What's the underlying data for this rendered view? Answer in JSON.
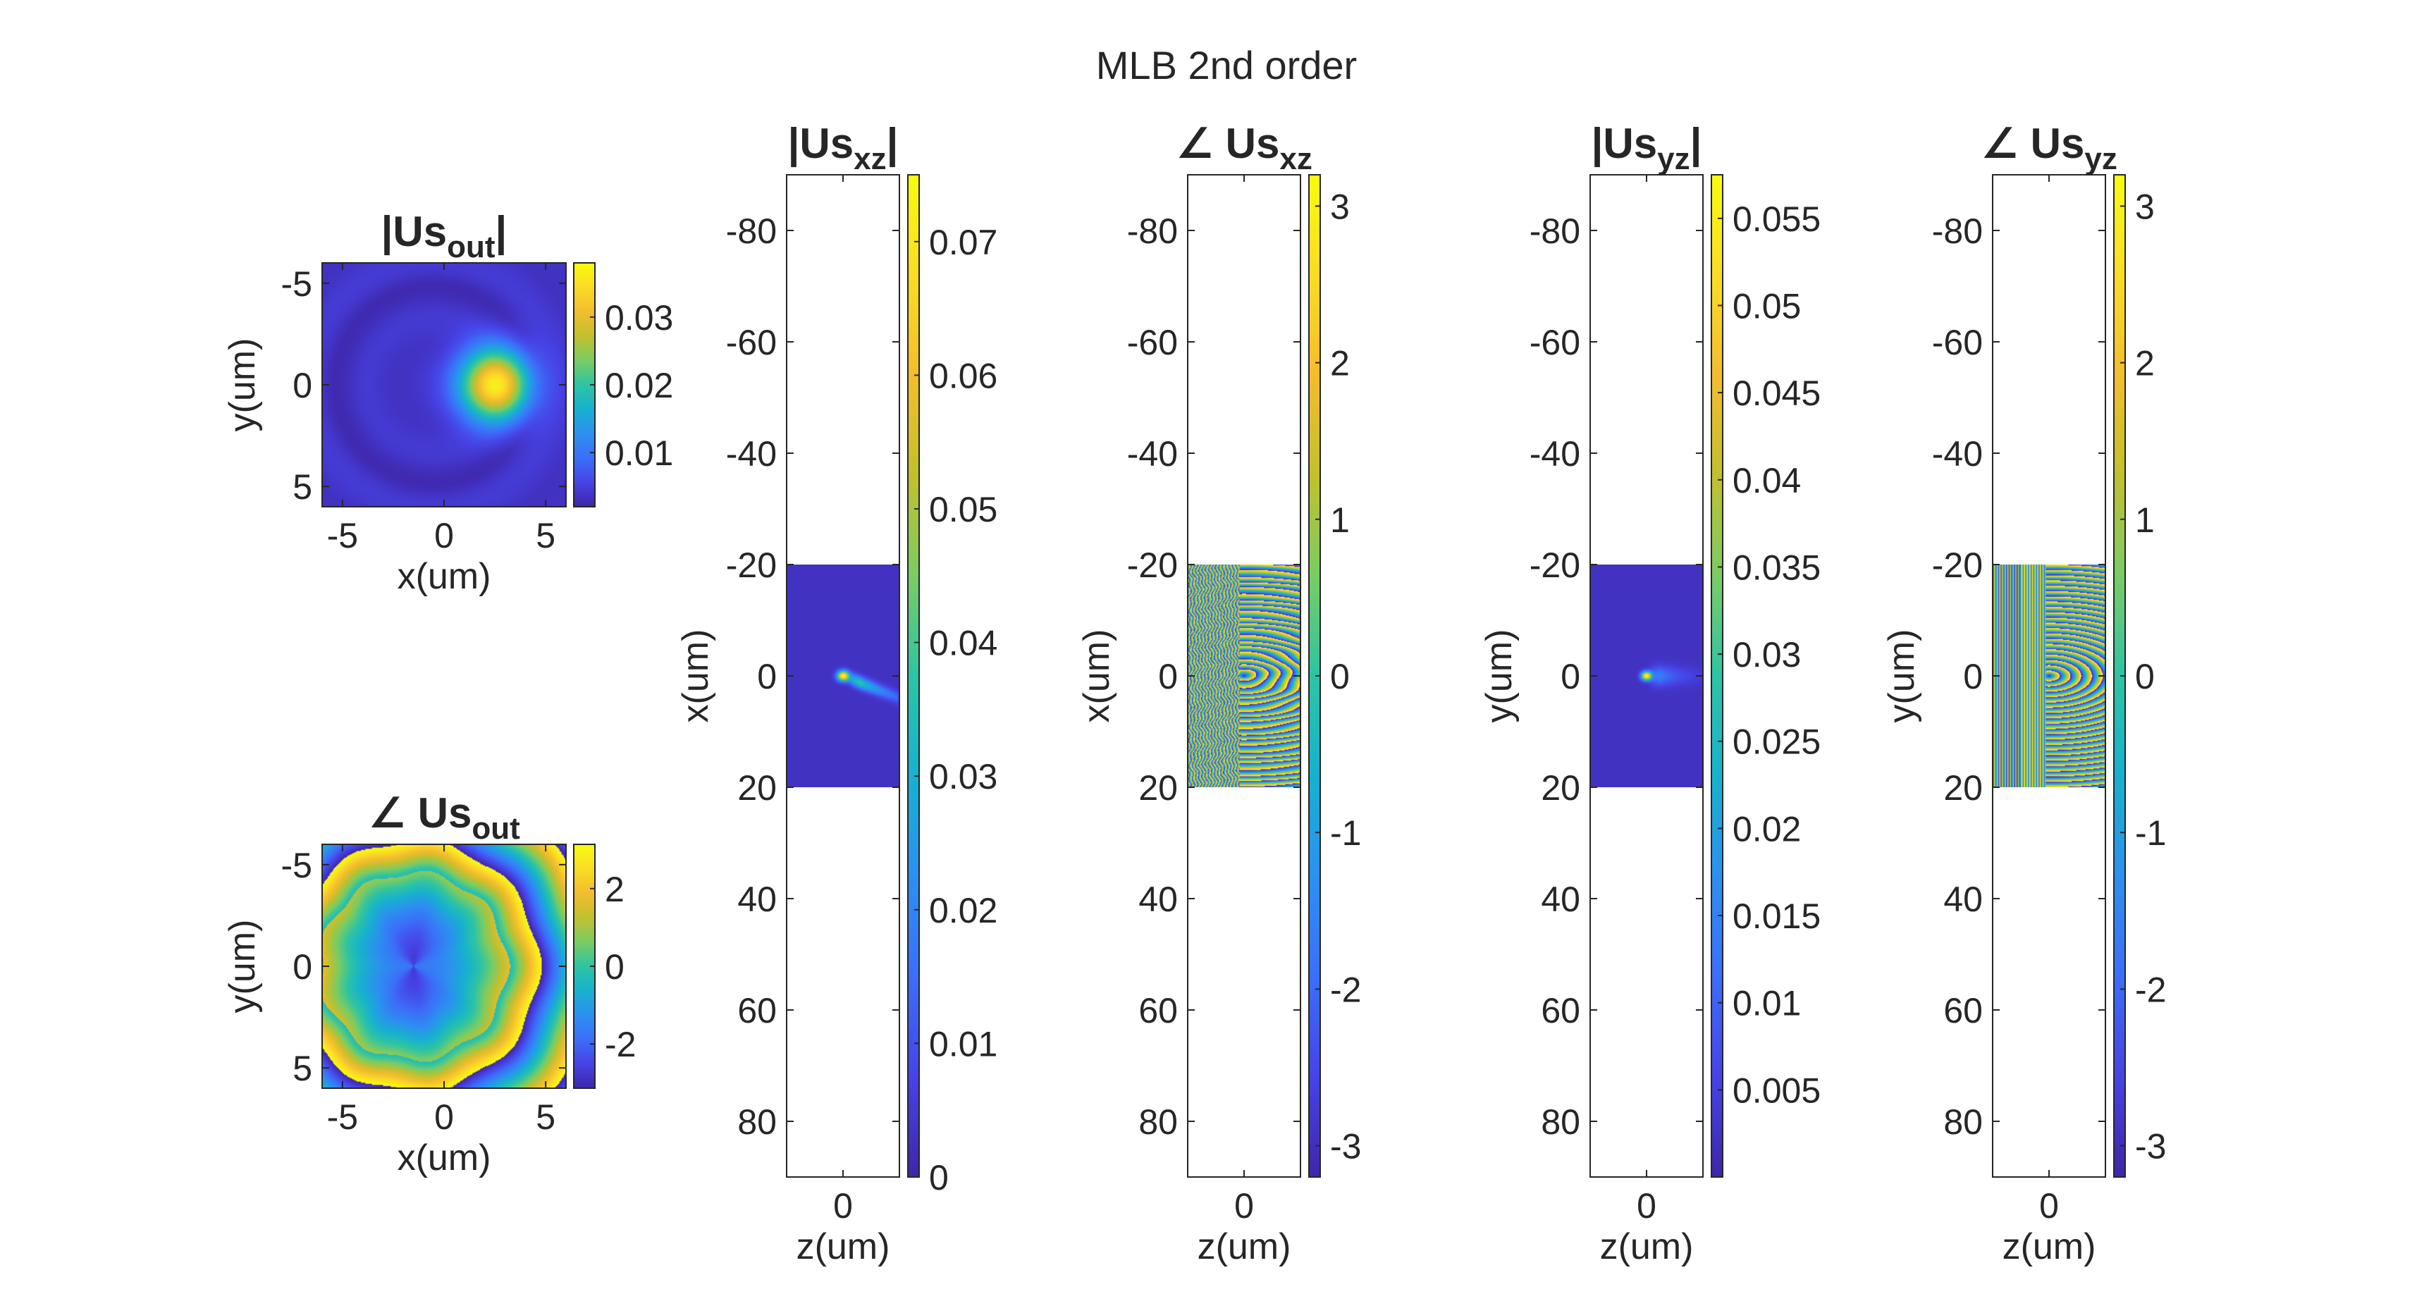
{
  "figure": {
    "title": "MLB 2nd order"
  },
  "colormap": [
    "#3e26a8",
    "#4743e6",
    "#3c6ef9",
    "#2c90f0",
    "#17b1cf",
    "#2dc4a4",
    "#7acc64",
    "#c2c02e",
    "#f3bd2e",
    "#fadc25",
    "#f9fb0e"
  ],
  "chart_data": [
    {
      "type": "heatmap",
      "name": "abs-us-out",
      "title": {
        "main": "|Us",
        "sub": "out",
        "suffix": "|"
      },
      "xlabel": "x(um)",
      "ylabel": "y(um)",
      "xlim": [
        -6,
        6
      ],
      "ylim": [
        -6,
        6
      ],
      "y_reversed": true,
      "xticks": [
        -5,
        0,
        5
      ],
      "yticks": [
        -5,
        0,
        5
      ],
      "colorbar": {
        "range": [
          0.002,
          0.038
        ],
        "ticks": [
          0.01,
          0.02,
          0.03
        ],
        "tick_labels": [
          "0.01",
          "0.02",
          "0.03"
        ]
      },
      "description_hint": "bright gaussian spot near x=2.5, y=0 on low background with faint rings"
    },
    {
      "type": "heatmap",
      "name": "phase-us-out",
      "title": {
        "main": "∠ Us",
        "sub": "out",
        "suffix": ""
      },
      "xlabel": "x(um)",
      "ylabel": "y(um)",
      "xlim": [
        -6,
        6
      ],
      "ylim": [
        -6,
        6
      ],
      "y_reversed": true,
      "xticks": [
        -5,
        0,
        5
      ],
      "yticks": [
        -5,
        0,
        5
      ],
      "colorbar": {
        "range": [
          -3.14,
          3.14
        ],
        "ticks": [
          -2,
          0,
          2
        ],
        "tick_labels": [
          "-2",
          "0",
          "2"
        ]
      }
    },
    {
      "type": "heatmap",
      "name": "abs-us-xz",
      "title": {
        "main": "|Us",
        "sub": "xz",
        "suffix": "|"
      },
      "xlabel": "z(um)",
      "ylabel": "x(um)",
      "xlim": [
        -5,
        5
      ],
      "ylim": [
        -90,
        90
      ],
      "y_reversed": true,
      "data_extent_y": [
        -20,
        20
      ],
      "xticks": [
        0
      ],
      "yticks": [
        -80,
        -60,
        -40,
        -20,
        0,
        20,
        40,
        60,
        80
      ],
      "colorbar": {
        "range": [
          0,
          0.075
        ],
        "ticks": [
          0,
          0.01,
          0.02,
          0.03,
          0.04,
          0.05,
          0.06,
          0.07
        ],
        "tick_labels": [
          "0",
          "0.01",
          "0.02",
          "0.03",
          "0.04",
          "0.05",
          "0.06",
          "0.07"
        ]
      }
    },
    {
      "type": "heatmap",
      "name": "phase-us-xz",
      "title": {
        "main": "∠ Us",
        "sub": "xz",
        "suffix": ""
      },
      "xlabel": "z(um)",
      "ylabel": "x(um)",
      "xlim": [
        -5,
        5
      ],
      "ylim": [
        -90,
        90
      ],
      "y_reversed": true,
      "data_extent_y": [
        -20,
        20
      ],
      "xticks": [
        0
      ],
      "yticks": [
        -80,
        -60,
        -40,
        -20,
        0,
        20,
        40,
        60,
        80
      ],
      "colorbar": {
        "range": [
          -3.2,
          3.2
        ],
        "ticks": [
          -3,
          -2,
          -1,
          0,
          1,
          2,
          3
        ],
        "tick_labels": [
          "-3",
          "-2",
          "-1",
          "0",
          "1",
          "2",
          "3"
        ]
      }
    },
    {
      "type": "heatmap",
      "name": "abs-us-yz",
      "title": {
        "main": "|Us",
        "sub": "yz",
        "suffix": "|"
      },
      "xlabel": "z(um)",
      "ylabel": "y(um)",
      "xlim": [
        -5,
        5
      ],
      "ylim": [
        -90,
        90
      ],
      "y_reversed": true,
      "data_extent_y": [
        -20,
        20
      ],
      "xticks": [
        0
      ],
      "yticks": [
        -80,
        -60,
        -40,
        -20,
        0,
        20,
        40,
        60,
        80
      ],
      "colorbar": {
        "range": [
          0,
          0.0575
        ],
        "ticks": [
          0.005,
          0.01,
          0.015,
          0.02,
          0.025,
          0.03,
          0.035,
          0.04,
          0.045,
          0.05,
          0.055
        ],
        "tick_labels": [
          "0.005",
          "0.01",
          "0.015",
          "0.02",
          "0.025",
          "0.03",
          "0.035",
          "0.04",
          "0.045",
          "0.05",
          "0.055"
        ]
      }
    },
    {
      "type": "heatmap",
      "name": "phase-us-yz",
      "title": {
        "main": "∠ Us",
        "sub": "yz",
        "suffix": ""
      },
      "xlabel": "z(um)",
      "ylabel": "y(um)",
      "xlim": [
        -5,
        5
      ],
      "ylim": [
        -90,
        90
      ],
      "y_reversed": true,
      "data_extent_y": [
        -20,
        20
      ],
      "xticks": [
        0
      ],
      "yticks": [
        -80,
        -60,
        -40,
        -20,
        0,
        20,
        40,
        60,
        80
      ],
      "colorbar": {
        "range": [
          -3.2,
          3.2
        ],
        "ticks": [
          -3,
          -2,
          -1,
          0,
          1,
          2,
          3
        ],
        "tick_labels": [
          "-3",
          "-2",
          "-1",
          "0",
          "1",
          "2",
          "3"
        ]
      }
    }
  ]
}
